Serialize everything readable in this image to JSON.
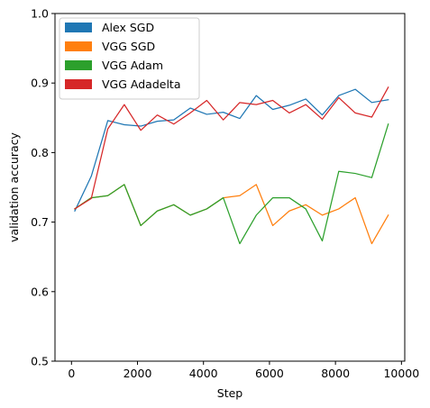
{
  "chart_data": {
    "type": "line",
    "xlabel": "Step",
    "ylabel": "validation accuracy",
    "xlim": [
      -500,
      10100
    ],
    "ylim": [
      0.5,
      1.0
    ],
    "xticks": [
      0,
      2000,
      4000,
      6000,
      8000,
      10000
    ],
    "xtick_labels": [
      "0",
      "2000",
      "4000",
      "6000",
      "8000",
      "10000"
    ],
    "yticks": [
      0.5,
      0.6,
      0.7,
      0.8,
      0.9,
      1.0
    ],
    "ytick_labels": [
      "0.5",
      "0.6",
      "0.7",
      "0.8",
      "0.9",
      "1.0"
    ],
    "grid": false,
    "legend_position": "top-left",
    "x": [
      100,
      600,
      1100,
      1600,
      2100,
      2600,
      3100,
      3600,
      4100,
      4600,
      5100,
      5600,
      6100,
      6600,
      7100,
      7600,
      8100,
      8600,
      9100,
      9600
    ],
    "series": [
      {
        "name": "Alex SGD",
        "color": "#1f77b4",
        "values": [
          0.716,
          0.766,
          0.846,
          0.84,
          0.838,
          0.845,
          0.847,
          0.864,
          0.855,
          0.858,
          0.849,
          0.882,
          0.862,
          0.868,
          0.877,
          0.854,
          0.882,
          0.891,
          0.872,
          0.876
        ]
      },
      {
        "name": "VGG SGD",
        "color": "#ff7f0e",
        "values": [
          0.719,
          0.735,
          0.738,
          0.754,
          0.695,
          0.716,
          0.725,
          0.71,
          0.719,
          0.735,
          0.738,
          0.754,
          0.695,
          0.716,
          0.725,
          0.71,
          0.719,
          0.735,
          0.669,
          0.71
        ]
      },
      {
        "name": "VGG Adam",
        "color": "#2ca02c",
        "values": [
          0.719,
          0.735,
          0.738,
          0.754,
          0.695,
          0.716,
          0.725,
          0.71,
          0.719,
          0.735,
          0.669,
          0.71,
          0.735,
          0.735,
          0.719,
          0.673,
          0.773,
          0.77,
          0.764,
          0.841
        ]
      },
      {
        "name": "VGG Adadelta",
        "color": "#d62728",
        "values": [
          0.719,
          0.734,
          0.834,
          0.869,
          0.832,
          0.854,
          0.841,
          0.857,
          0.875,
          0.847,
          0.872,
          0.869,
          0.875,
          0.857,
          0.869,
          0.848,
          0.879,
          0.857,
          0.851,
          0.894
        ]
      }
    ]
  }
}
